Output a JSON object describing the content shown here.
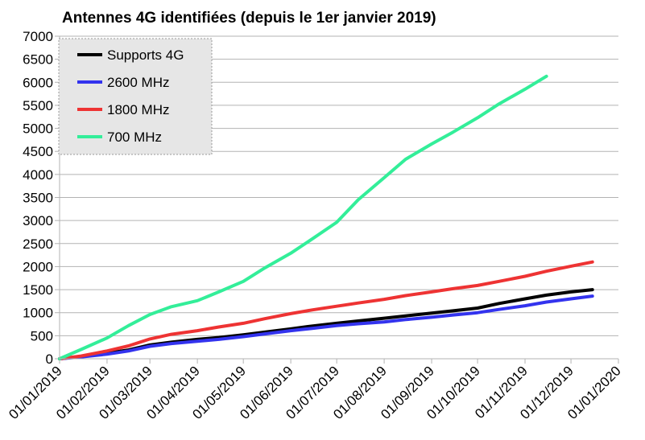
{
  "chart_data": {
    "type": "line",
    "title": "Antennes 4G identifiées (depuis le 1er janvier 2019)",
    "xlabel": "",
    "ylabel": "",
    "ylim": [
      0,
      7000
    ],
    "yticks": [
      0,
      500,
      1000,
      1500,
      2000,
      2500,
      3000,
      3500,
      4000,
      4500,
      5000,
      5500,
      6000,
      6500,
      7000
    ],
    "xticks": [
      "01/01/2019",
      "01/02/2019",
      "01/03/2019",
      "01/04/2019",
      "01/05/2019",
      "01/06/2019",
      "01/07/2019",
      "01/08/2019",
      "01/09/2019",
      "01/10/2019",
      "01/11/2019",
      "01/12/2019",
      "01/01/2020"
    ],
    "grid": "horizontal",
    "legend_position": "top-left",
    "series": [
      {
        "name": "Supports 4G",
        "color": "#000000",
        "points": [
          [
            "01/01/2019",
            0
          ],
          [
            "15/01/2019",
            50
          ],
          [
            "01/02/2019",
            120
          ],
          [
            "15/02/2019",
            190
          ],
          [
            "01/03/2019",
            300
          ],
          [
            "15/03/2019",
            360
          ],
          [
            "01/04/2019",
            420
          ],
          [
            "15/04/2019",
            460
          ],
          [
            "01/05/2019",
            520
          ],
          [
            "15/05/2019",
            580
          ],
          [
            "01/06/2019",
            650
          ],
          [
            "15/06/2019",
            710
          ],
          [
            "01/07/2019",
            770
          ],
          [
            "15/07/2019",
            820
          ],
          [
            "01/08/2019",
            880
          ],
          [
            "15/08/2019",
            930
          ],
          [
            "01/09/2019",
            990
          ],
          [
            "15/09/2019",
            1040
          ],
          [
            "01/10/2019",
            1100
          ],
          [
            "15/10/2019",
            1200
          ],
          [
            "01/11/2019",
            1300
          ],
          [
            "15/11/2019",
            1380
          ],
          [
            "01/12/2019",
            1450
          ],
          [
            "15/12/2019",
            1500
          ]
        ]
      },
      {
        "name": "2600 MHz",
        "color": "#3333ee",
        "points": [
          [
            "01/01/2019",
            0
          ],
          [
            "15/01/2019",
            40
          ],
          [
            "01/02/2019",
            100
          ],
          [
            "15/02/2019",
            170
          ],
          [
            "01/03/2019",
            270
          ],
          [
            "15/03/2019",
            330
          ],
          [
            "01/04/2019",
            380
          ],
          [
            "15/04/2019",
            420
          ],
          [
            "01/05/2019",
            480
          ],
          [
            "15/05/2019",
            540
          ],
          [
            "01/06/2019",
            610
          ],
          [
            "15/06/2019",
            660
          ],
          [
            "01/07/2019",
            720
          ],
          [
            "15/07/2019",
            760
          ],
          [
            "01/08/2019",
            800
          ],
          [
            "15/08/2019",
            850
          ],
          [
            "01/09/2019",
            900
          ],
          [
            "15/09/2019",
            950
          ],
          [
            "01/10/2019",
            1000
          ],
          [
            "15/10/2019",
            1070
          ],
          [
            "01/11/2019",
            1150
          ],
          [
            "15/11/2019",
            1230
          ],
          [
            "01/12/2019",
            1300
          ],
          [
            "15/12/2019",
            1360
          ]
        ]
      },
      {
        "name": "1800 MHz",
        "color": "#ee3333",
        "points": [
          [
            "01/01/2019",
            0
          ],
          [
            "15/01/2019",
            60
          ],
          [
            "01/02/2019",
            170
          ],
          [
            "15/02/2019",
            280
          ],
          [
            "01/03/2019",
            430
          ],
          [
            "15/03/2019",
            530
          ],
          [
            "01/04/2019",
            610
          ],
          [
            "15/04/2019",
            690
          ],
          [
            "01/05/2019",
            770
          ],
          [
            "15/05/2019",
            870
          ],
          [
            "01/06/2019",
            980
          ],
          [
            "15/06/2019",
            1060
          ],
          [
            "01/07/2019",
            1140
          ],
          [
            "15/07/2019",
            1210
          ],
          [
            "01/08/2019",
            1290
          ],
          [
            "15/08/2019",
            1370
          ],
          [
            "01/09/2019",
            1450
          ],
          [
            "15/09/2019",
            1520
          ],
          [
            "01/10/2019",
            1590
          ],
          [
            "15/10/2019",
            1680
          ],
          [
            "01/11/2019",
            1790
          ],
          [
            "15/11/2019",
            1900
          ],
          [
            "01/12/2019",
            2010
          ],
          [
            "15/12/2019",
            2100
          ]
        ]
      },
      {
        "name": "700 MHz",
        "color": "#33ee99",
        "points": [
          [
            "01/01/2019",
            0
          ],
          [
            "15/01/2019",
            200
          ],
          [
            "01/02/2019",
            450
          ],
          [
            "15/02/2019",
            720
          ],
          [
            "01/03/2019",
            960
          ],
          [
            "15/03/2019",
            1130
          ],
          [
            "01/04/2019",
            1260
          ],
          [
            "15/04/2019",
            1450
          ],
          [
            "01/05/2019",
            1680
          ],
          [
            "15/05/2019",
            1970
          ],
          [
            "01/06/2019",
            2290
          ],
          [
            "15/06/2019",
            2600
          ],
          [
            "01/07/2019",
            2960
          ],
          [
            "15/07/2019",
            3450
          ],
          [
            "01/08/2019",
            3930
          ],
          [
            "15/08/2019",
            4330
          ],
          [
            "01/09/2019",
            4660
          ],
          [
            "15/09/2019",
            4920
          ],
          [
            "01/10/2019",
            5230
          ],
          [
            "15/10/2019",
            5530
          ],
          [
            "01/11/2019",
            5850
          ],
          [
            "15/11/2019",
            6130
          ]
        ]
      }
    ]
  }
}
